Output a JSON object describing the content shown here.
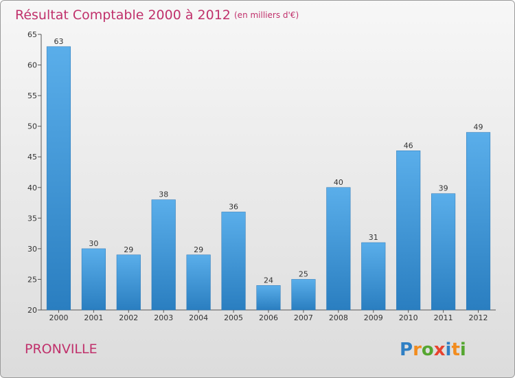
{
  "chart_data": {
    "type": "bar",
    "title": "Résultat Comptable 2000 à 2012",
    "subtitle": "(en milliers d'€)",
    "categories": [
      "2000",
      "2001",
      "2002",
      "2003",
      "2004",
      "2005",
      "2006",
      "2007",
      "2008",
      "2009",
      "2010",
      "2011",
      "2012"
    ],
    "values": [
      63,
      30,
      29,
      38,
      29,
      36,
      24,
      25,
      40,
      31,
      46,
      39,
      49
    ],
    "ylim": [
      20,
      65
    ],
    "yticks": [
      20,
      25,
      30,
      35,
      40,
      45,
      50,
      55,
      60,
      65
    ],
    "xlabel": "",
    "ylabel": "",
    "grid": false,
    "bar_color": "#3d94d6",
    "title_color": "#c0306b"
  },
  "footer": {
    "commune": "PRONVILLE",
    "brand": "Proxiti",
    "brand_letters": [
      {
        "char": "P",
        "color": "#2f7fc4"
      },
      {
        "char": "r",
        "color": "#f28c1e"
      },
      {
        "char": "o",
        "color": "#55a630"
      },
      {
        "char": "x",
        "color": "#e8432e"
      },
      {
        "char": "i",
        "color": "#2f7fc4"
      },
      {
        "char": "t",
        "color": "#f28c1e"
      },
      {
        "char": "i",
        "color": "#55a630"
      }
    ]
  }
}
